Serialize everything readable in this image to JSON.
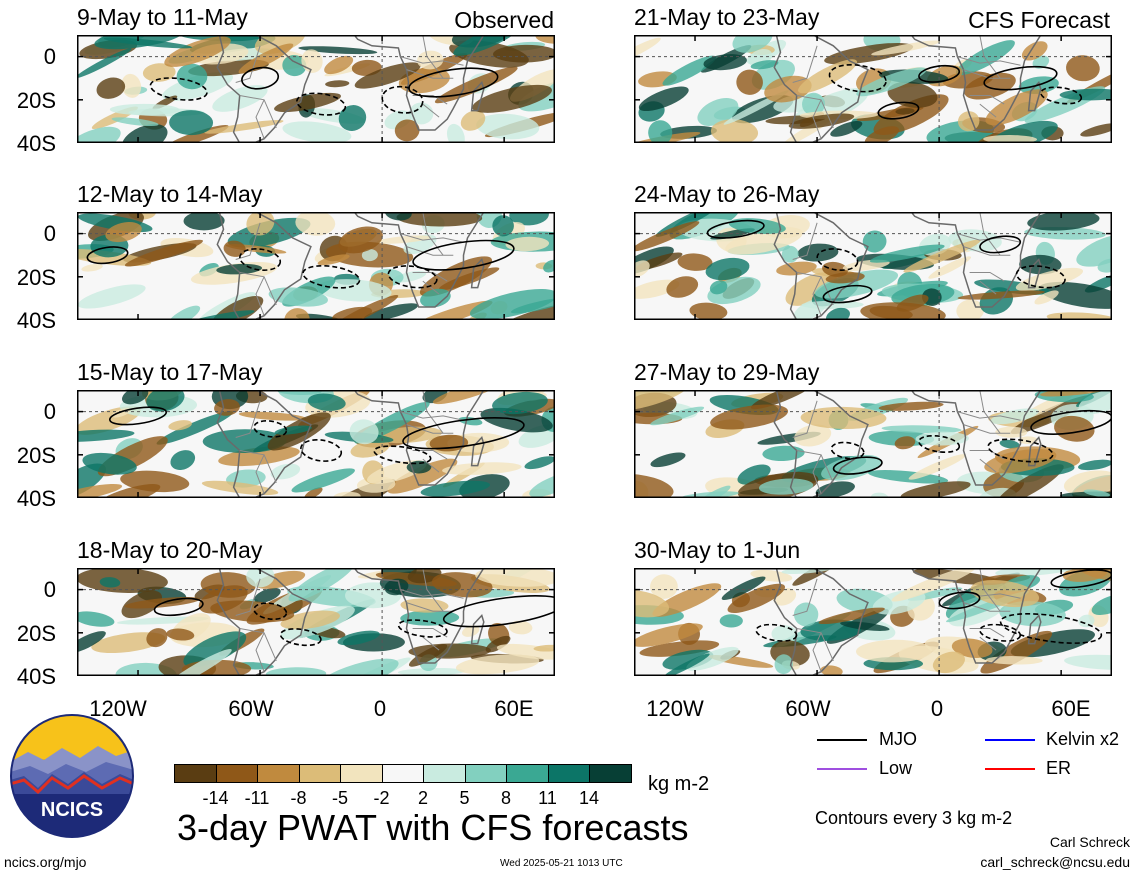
{
  "chart_data": {
    "type": "heatmap",
    "title": "3-day PWAT with CFS forecasts",
    "units": "kg m-2",
    "contour_note": "Contours every 3 kg m-2",
    "observed_label": "Observed",
    "forecast_label": "CFS Forecast",
    "x_ticks": [
      "120W",
      "60W",
      "0",
      "60E"
    ],
    "y_ticks": [
      "0",
      "20S",
      "40S"
    ],
    "xlim": [
      -150,
      85
    ],
    "ylim": [
      -40,
      10
    ],
    "panels": [
      {
        "title": "9-May to 11-May",
        "column": "observed"
      },
      {
        "title": "12-May to 14-May",
        "column": "observed"
      },
      {
        "title": "15-May to 17-May",
        "column": "observed"
      },
      {
        "title": "18-May to 20-May",
        "column": "observed"
      },
      {
        "title": "21-May to 23-May",
        "column": "forecast"
      },
      {
        "title": "24-May to 26-May",
        "column": "forecast"
      },
      {
        "title": "27-May to 29-May",
        "column": "forecast"
      },
      {
        "title": "30-May to 1-Jun",
        "column": "forecast"
      }
    ],
    "colorbar": {
      "levels": [
        "-14",
        "-11",
        "-8",
        "-5",
        "-2",
        "2",
        "5",
        "8",
        "11",
        "14"
      ],
      "colors": [
        "#5a3d12",
        "#8f5818",
        "#c08a3e",
        "#dcbc78",
        "#f2e4be",
        "#f7f7f7",
        "#c9ebe0",
        "#82d0bf",
        "#3aa893",
        "#0c7567",
        "#073f35"
      ]
    },
    "legend": [
      {
        "label": "MJO",
        "color": "#000000"
      },
      {
        "label": "Kelvin x2",
        "color": "#0000ff"
      },
      {
        "label": "Low",
        "color": "#9f4fe0"
      },
      {
        "label": "ER",
        "color": "#ff0000"
      }
    ]
  },
  "branding": {
    "logo_text": "NCICS",
    "site": "ncics.org/mjo",
    "timestamp": "Wed 2025-05-21 1013 UTC",
    "author": "Carl Schreck",
    "email": "carl_schreck@ncsu.edu"
  }
}
